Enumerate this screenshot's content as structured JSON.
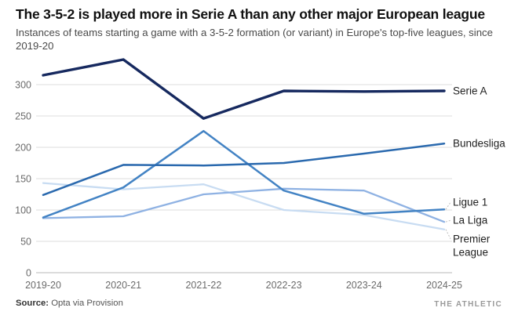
{
  "header": {
    "title": "The 3-5-2 is played more in Serie A than any other major European league",
    "subtitle": "Instances of teams starting a game with a 3-5-2 formation (or variant) in Europe's top-five leagues, since 2019-20"
  },
  "footer": {
    "source_label": "Source:",
    "source_text": " Opta via Provision",
    "brand": "THE ATHLETIC"
  },
  "colors": {
    "serie_a": "#16295f",
    "bundesliga": "#2a69ae",
    "ligue_1": "#4383c4",
    "la_liga": "#8fb2e3",
    "premier_league": "#c8dcf2",
    "gridline": "#dedede",
    "zero_line": "#b9b9b9",
    "tick_text": "#6b6b6b",
    "label_text": "#1f1f1f",
    "leader": "#bdbdbd"
  },
  "chart_data": {
    "type": "line",
    "title": "The 3-5-2 is played more in Serie A than any other major European league",
    "x": [
      "2019-20",
      "2020-21",
      "2021-22",
      "2022-23",
      "2023-24",
      "2024-25"
    ],
    "series": [
      {
        "name": "Serie A",
        "color": "#16295f",
        "values": [
          315,
          340,
          246,
          290,
          289,
          290
        ]
      },
      {
        "name": "Bundesliga",
        "color": "#2a69ae",
        "values": [
          124,
          172,
          171,
          175,
          190,
          206
        ]
      },
      {
        "name": "Ligue 1",
        "color": "#4383c4",
        "values": [
          88,
          136,
          226,
          131,
          94,
          101
        ]
      },
      {
        "name": "La Liga",
        "color": "#8fb2e3",
        "values": [
          87,
          90,
          125,
          134,
          131,
          81
        ]
      },
      {
        "name": "Premier League",
        "color": "#c8dcf2",
        "values": [
          143,
          133,
          141,
          100,
          92,
          69
        ]
      }
    ],
    "xlabel": "",
    "ylabel": "",
    "yticks": [
      0,
      50,
      100,
      150,
      200,
      250,
      300
    ],
    "ylim": [
      0,
      350
    ],
    "grid": true,
    "legend_position": "right-edge-labels"
  }
}
